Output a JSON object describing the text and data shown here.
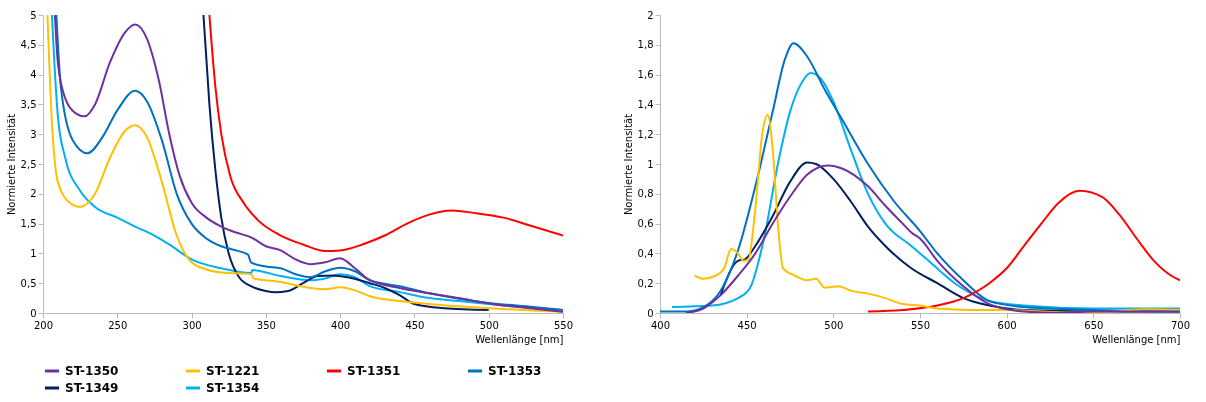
{
  "chart_data": [
    {
      "type": "line",
      "xlabel": "Wellenlänge [nm]",
      "ylabel": "Normierte Intensität",
      "xlim": [
        200,
        550
      ],
      "xticks": [
        200,
        250,
        300,
        350,
        400,
        450,
        500,
        550
      ],
      "ylim": [
        0,
        5
      ],
      "yticks": [
        0,
        {
          "value": 0.5,
          "label": "0,5"
        },
        1,
        {
          "value": 1.5,
          "label": "1,5"
        },
        2,
        {
          "value": 2.5,
          "label": "2,5"
        },
        3,
        {
          "value": 3.5,
          "label": "3,5"
        },
        4,
        {
          "value": 4.5,
          "label": "4,5"
        },
        5
      ],
      "grid": false,
      "legend": "bottom left",
      "series": [
        {
          "name": "ST-1350",
          "color": "#7030a0",
          "x": [
            208,
            210,
            215,
            222,
            228,
            235,
            245,
            255,
            262,
            270,
            278,
            285,
            292,
            300,
            310,
            320,
            330,
            340,
            350,
            360,
            370,
            380,
            390,
            400,
            410,
            420,
            440,
            460,
            480,
            500,
            520,
            550
          ],
          "values": [
            5,
            4.2,
            3.6,
            3.35,
            3.3,
            3.5,
            4.2,
            4.7,
            4.84,
            4.6,
            3.9,
            3.0,
            2.3,
            1.85,
            1.6,
            1.45,
            1.35,
            1.27,
            1.12,
            1.05,
            0.9,
            0.82,
            0.85,
            0.92,
            0.75,
            0.55,
            0.42,
            0.33,
            0.25,
            0.16,
            0.1,
            0.02
          ]
        },
        {
          "name": "ST-1221",
          "color": "#ffc000",
          "x": [
            203,
            206,
            210,
            218,
            225,
            235,
            245,
            255,
            262,
            270,
            280,
            290,
            300,
            310,
            320,
            340,
            342,
            360,
            380,
            390,
            400,
            410,
            420,
            440,
            460,
            500,
            550
          ],
          "values": [
            5,
            3.2,
            2.2,
            1.85,
            1.78,
            2.0,
            2.6,
            3.05,
            3.15,
            2.95,
            2.2,
            1.3,
            0.85,
            0.73,
            0.68,
            0.65,
            0.58,
            0.52,
            0.42,
            0.4,
            0.43,
            0.38,
            0.28,
            0.2,
            0.15,
            0.08,
            0.02
          ]
        },
        {
          "name": "ST-1351",
          "color": "#ff0000",
          "x": [
            312,
            316,
            320,
            326,
            335,
            345,
            360,
            375,
            390,
            400,
            415,
            430,
            445,
            460,
            475,
            490,
            510,
            530,
            550
          ],
          "values": [
            5,
            3.8,
            3.0,
            2.3,
            1.85,
            1.55,
            1.3,
            1.15,
            1.04,
            1.05,
            1.15,
            1.3,
            1.5,
            1.65,
            1.72,
            1.68,
            1.6,
            1.45,
            1.3
          ]
        },
        {
          "name": "ST-1353",
          "color": "#0070c0",
          "x": [
            209,
            212,
            220,
            230,
            240,
            250,
            262,
            270,
            280,
            290,
            300,
            310,
            320,
            330,
            338,
            340,
            350,
            360,
            370,
            380,
            390,
            400,
            410,
            420,
            440,
            460,
            480,
            500,
            530,
            550
          ],
          "values": [
            5,
            3.8,
            2.9,
            2.68,
            2.95,
            3.4,
            3.73,
            3.55,
            2.9,
            2.0,
            1.5,
            1.25,
            1.12,
            1.05,
            0.98,
            0.85,
            0.78,
            0.75,
            0.65,
            0.6,
            0.7,
            0.76,
            0.7,
            0.55,
            0.45,
            0.33,
            0.24,
            0.17,
            0.1,
            0.05
          ]
        },
        {
          "name": "ST-1349",
          "color": "#002060",
          "x": [
            308,
            312,
            316,
            320,
            325,
            332,
            340,
            350,
            356,
            365,
            375,
            385,
            395,
            405,
            420,
            430,
            440,
            450,
            470,
            500
          ],
          "values": [
            5,
            3.5,
            2.4,
            1.6,
            1.0,
            0.6,
            0.45,
            0.37,
            0.35,
            0.37,
            0.5,
            0.62,
            0.63,
            0.6,
            0.5,
            0.42,
            0.3,
            0.15,
            0.08,
            0.05
          ]
        },
        {
          "name": "ST-1354",
          "color": "#00b0f0",
          "x": [
            206,
            210,
            215,
            225,
            235,
            250,
            262,
            275,
            285,
            300,
            320,
            340,
            341,
            360,
            380,
            390,
            400,
            410,
            420,
            440,
            460,
            480,
            500,
            550
          ],
          "values": [
            5,
            3.3,
            2.6,
            2.05,
            1.78,
            1.6,
            1.45,
            1.3,
            1.15,
            0.9,
            0.75,
            0.67,
            0.72,
            0.62,
            0.55,
            0.58,
            0.65,
            0.6,
            0.45,
            0.35,
            0.25,
            0.2,
            0.15,
            0.05
          ]
        }
      ]
    },
    {
      "type": "line",
      "xlabel": "Wellenlänge [nm]",
      "ylabel": "Normierte Intensität",
      "xlim": [
        400,
        700
      ],
      "xticks": [
        400,
        450,
        500,
        550,
        600,
        650,
        700
      ],
      "ylim": [
        0,
        2
      ],
      "yticks": [
        0,
        {
          "value": 0.2,
          "label": "0,2"
        },
        {
          "value": 0.4,
          "label": "0,4"
        },
        {
          "value": 0.6,
          "label": "0,6"
        },
        {
          "value": 0.8,
          "label": "0,8"
        },
        1,
        {
          "value": 1.2,
          "label": "1,2"
        },
        {
          "value": 1.4,
          "label": "1,4"
        },
        {
          "value": 1.6,
          "label": "1,6"
        },
        {
          "value": 1.8,
          "label": "1,8"
        },
        2
      ],
      "grid": false,
      "legend": "bottom left",
      "series": [
        {
          "name": "ST-1350",
          "color": "#7030a0",
          "x": [
            415,
            425,
            435,
            445,
            455,
            465,
            475,
            485,
            497,
            505,
            520,
            530,
            540,
            545,
            550,
            560,
            575,
            590,
            610,
            630,
            650,
            700
          ],
          "values": [
            0,
            0.03,
            0.12,
            0.25,
            0.4,
            0.6,
            0.78,
            0.93,
            0.99,
            0.97,
            0.85,
            0.72,
            0.6,
            0.54,
            0.5,
            0.35,
            0.18,
            0.06,
            0.01,
            0,
            0.01,
            0.01
          ]
        },
        {
          "name": "ST-1221",
          "color": "#ffc000",
          "x": [
            420,
            425,
            432,
            437,
            441,
            445,
            448,
            451,
            455,
            459,
            462,
            465,
            468,
            471,
            478,
            485,
            490,
            495,
            503,
            510,
            520,
            530,
            540,
            550,
            560,
            580,
            600,
            620,
            650,
            680,
            700
          ],
          "values": [
            0.25,
            0.23,
            0.25,
            0.3,
            0.43,
            0.4,
            0.35,
            0.36,
            0.7,
            1.2,
            1.33,
            1.1,
            0.6,
            0.3,
            0.25,
            0.22,
            0.23,
            0.17,
            0.18,
            0.15,
            0.13,
            0.1,
            0.06,
            0.05,
            0.03,
            0.02,
            0.02,
            0.01,
            0,
            0.025,
            0.02
          ]
        },
        {
          "name": "ST-1351",
          "color": "#ff0000",
          "x": [
            520,
            540,
            560,
            575,
            590,
            600,
            610,
            620,
            630,
            642,
            655,
            665,
            675,
            685,
            695,
            700
          ],
          "values": [
            0.01,
            0.02,
            0.05,
            0.1,
            0.2,
            0.3,
            0.45,
            0.6,
            0.74,
            0.82,
            0.78,
            0.66,
            0.5,
            0.35,
            0.25,
            0.22
          ]
        },
        {
          "name": "ST-1353",
          "color": "#0070c0",
          "x": [
            400,
            415,
            425,
            435,
            445,
            455,
            465,
            472,
            477,
            485,
            495,
            505,
            520,
            535,
            550,
            560,
            575,
            590,
            610,
            650,
            700
          ],
          "values": [
            0.01,
            0.01,
            0.04,
            0.15,
            0.42,
            0.85,
            1.35,
            1.7,
            1.81,
            1.72,
            1.5,
            1.3,
            1.0,
            0.75,
            0.55,
            0.4,
            0.22,
            0.08,
            0.04,
            0.02,
            0.01
          ]
        },
        {
          "name": "ST-1349",
          "color": "#002060",
          "x": [
            435,
            445,
            449,
            455,
            465,
            475,
            485,
            490,
            500,
            510,
            520,
            530,
            545,
            560,
            575,
            590,
            610,
            650,
            700
          ],
          "values": [
            0.12,
            0.35,
            0.36,
            0.45,
            0.65,
            0.88,
            1.01,
            1.0,
            0.9,
            0.75,
            0.58,
            0.45,
            0.3,
            0.2,
            0.1,
            0.05,
            0.02,
            0.01,
            0.01
          ]
        },
        {
          "name": "ST-1354",
          "color": "#00b0f0",
          "x": [
            407,
            430,
            445,
            452,
            460,
            468,
            475,
            482,
            487,
            493,
            500,
            510,
            520,
            530,
            545,
            555,
            570,
            590,
            610,
            650,
            700
          ],
          "values": [
            0.04,
            0.05,
            0.1,
            0.17,
            0.5,
            1.0,
            1.35,
            1.55,
            1.61,
            1.57,
            1.42,
            1.1,
            0.8,
            0.6,
            0.45,
            0.35,
            0.2,
            0.08,
            0.05,
            0.03,
            0.03
          ]
        }
      ]
    }
  ]
}
